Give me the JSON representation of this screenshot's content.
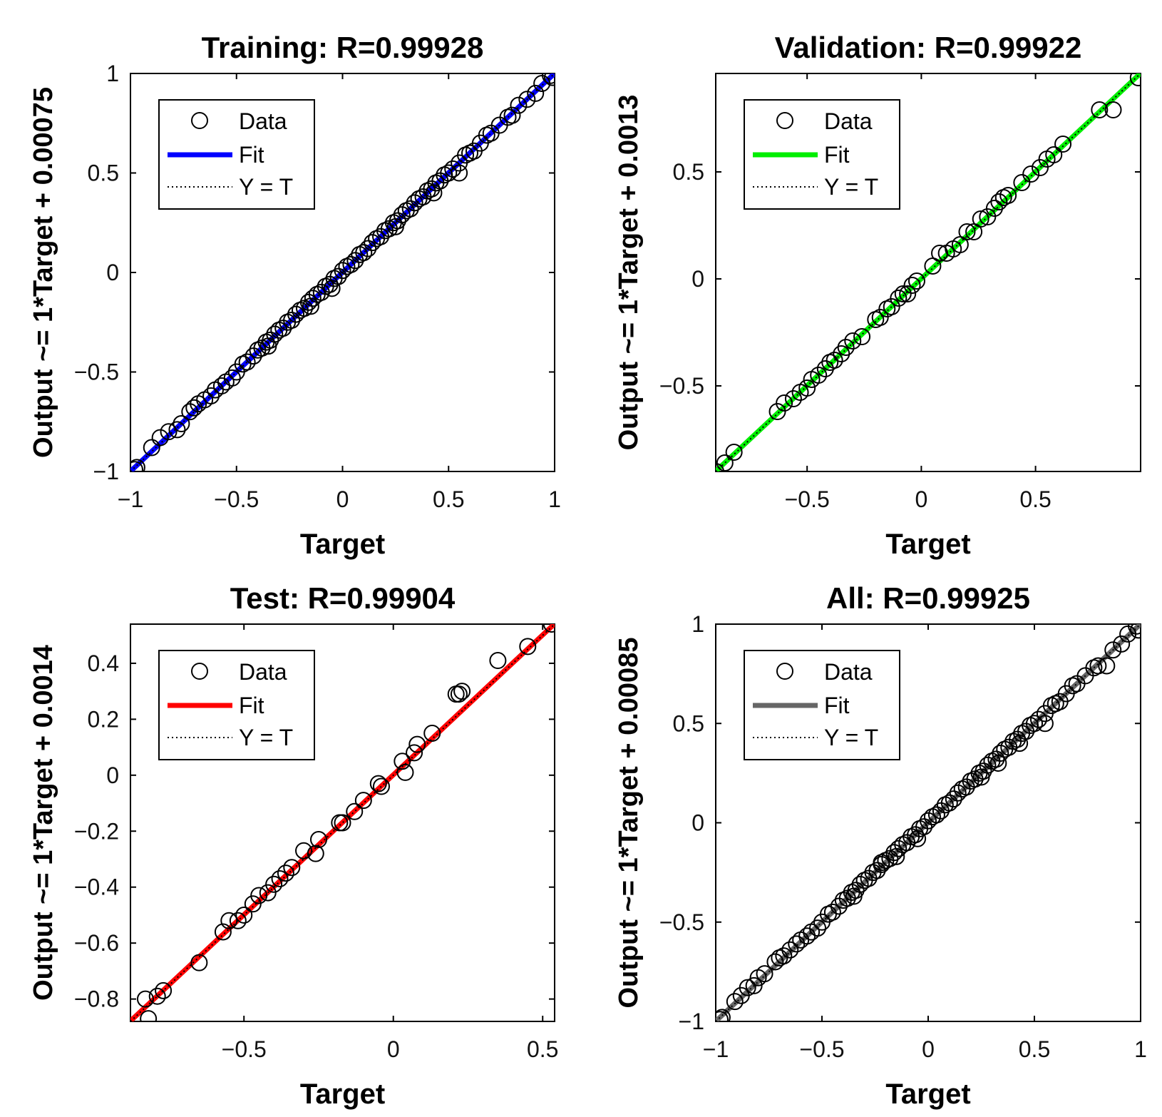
{
  "chart_data": [
    {
      "type": "scatter",
      "title": "Training: R=0.99928",
      "xlabel": "Target",
      "ylabel": "Output ~= 1*Target + 0.00075",
      "xlim": [
        -1,
        1
      ],
      "ylim": [
        -1,
        1
      ],
      "xticks": [
        -1,
        -0.5,
        0,
        0.5,
        1
      ],
      "yticks": [
        -1,
        -0.5,
        0,
        0.5,
        1
      ],
      "xtick_labels": [
        "−1",
        "−0.5",
        "0",
        "0.5",
        "1"
      ],
      "ytick_labels": [
        "−1",
        "−0.5",
        "0",
        "0.5",
        "1"
      ],
      "fit": {
        "slope": 1,
        "intercept": 0.00075,
        "color": "#0000ff"
      },
      "legend": [
        "Data",
        "Fit",
        "Y = T"
      ],
      "points": [
        [
          -0.98,
          -0.99
        ],
        [
          -0.97,
          -0.98
        ],
        [
          -0.9,
          -0.88
        ],
        [
          -0.86,
          -0.83
        ],
        [
          -0.82,
          -0.8
        ],
        [
          -0.78,
          -0.79
        ],
        [
          -0.76,
          -0.76
        ],
        [
          -0.72,
          -0.7
        ],
        [
          -0.7,
          -0.68
        ],
        [
          -0.68,
          -0.66
        ],
        [
          -0.65,
          -0.64
        ],
        [
          -0.62,
          -0.62
        ],
        [
          -0.6,
          -0.59
        ],
        [
          -0.57,
          -0.57
        ],
        [
          -0.55,
          -0.55
        ],
        [
          -0.52,
          -0.53
        ],
        [
          -0.5,
          -0.5
        ],
        [
          -0.47,
          -0.46
        ],
        [
          -0.45,
          -0.45
        ],
        [
          -0.42,
          -0.42
        ],
        [
          -0.4,
          -0.39
        ],
        [
          -0.38,
          -0.38
        ],
        [
          -0.36,
          -0.35
        ],
        [
          -0.34,
          -0.34
        ],
        [
          -0.32,
          -0.31
        ],
        [
          -0.3,
          -0.29
        ],
        [
          -0.28,
          -0.28
        ],
        [
          -0.26,
          -0.25
        ],
        [
          -0.24,
          -0.24
        ],
        [
          -0.22,
          -0.21
        ],
        [
          -0.2,
          -0.19
        ],
        [
          -0.18,
          -0.18
        ],
        [
          -0.16,
          -0.15
        ],
        [
          -0.14,
          -0.13
        ],
        [
          -0.12,
          -0.11
        ],
        [
          -0.1,
          -0.1
        ],
        [
          -0.08,
          -0.07
        ],
        [
          -0.06,
          -0.06
        ],
        [
          -0.04,
          -0.03
        ],
        [
          -0.02,
          -0.02
        ],
        [
          0.0,
          0.01
        ],
        [
          0.02,
          0.03
        ],
        [
          0.04,
          0.04
        ],
        [
          0.06,
          0.06
        ],
        [
          0.08,
          0.09
        ],
        [
          0.1,
          0.1
        ],
        [
          0.12,
          0.12
        ],
        [
          0.14,
          0.15
        ],
        [
          0.16,
          0.17
        ],
        [
          0.18,
          0.18
        ],
        [
          0.2,
          0.21
        ],
        [
          0.22,
          0.22
        ],
        [
          0.24,
          0.25
        ],
        [
          0.26,
          0.26
        ],
        [
          0.28,
          0.29
        ],
        [
          0.3,
          0.31
        ],
        [
          0.32,
          0.32
        ],
        [
          0.34,
          0.35
        ],
        [
          0.36,
          0.37
        ],
        [
          0.38,
          0.38
        ],
        [
          0.4,
          0.41
        ],
        [
          0.42,
          0.42
        ],
        [
          0.44,
          0.45
        ],
        [
          0.46,
          0.46
        ],
        [
          0.48,
          0.49
        ],
        [
          0.5,
          0.5
        ],
        [
          0.52,
          0.52
        ],
        [
          0.55,
          0.55
        ],
        [
          0.58,
          0.59
        ],
        [
          0.6,
          0.6
        ],
        [
          0.62,
          0.61
        ],
        [
          0.65,
          0.65
        ],
        [
          0.68,
          0.69
        ],
        [
          0.7,
          0.7
        ],
        [
          0.74,
          0.74
        ],
        [
          0.78,
          0.78
        ],
        [
          0.8,
          0.79
        ],
        [
          0.83,
          0.84
        ],
        [
          0.87,
          0.87
        ],
        [
          0.91,
          0.9
        ],
        [
          0.94,
          0.95
        ],
        [
          0.98,
          0.99
        ],
        [
          0.99,
          0.98
        ],
        [
          -0.15,
          -0.17
        ],
        [
          0.25,
          0.23
        ],
        [
          -0.35,
          -0.37
        ],
        [
          0.43,
          0.4
        ],
        [
          -0.05,
          -0.08
        ],
        [
          0.55,
          0.5
        ]
      ]
    },
    {
      "type": "scatter",
      "title": "Validation: R=0.99922",
      "xlabel": "Target",
      "ylabel": "Output ~= 1*Target + 0.0013",
      "xlim": [
        -0.9,
        0.96
      ],
      "ylim": [
        -0.9,
        0.96
      ],
      "xticks": [
        -0.5,
        0,
        0.5
      ],
      "yticks": [
        -0.5,
        0,
        0.5
      ],
      "xtick_labels": [
        "−0.5",
        "0",
        "0.5"
      ],
      "ytick_labels": [
        "−0.5",
        "0",
        "0.5"
      ],
      "fit": {
        "slope": 1,
        "intercept": 0.0013,
        "color": "#00ee00"
      },
      "legend": [
        "Data",
        "Fit",
        "Y = T"
      ],
      "points": [
        [
          -0.9,
          -0.9
        ],
        [
          -0.86,
          -0.86
        ],
        [
          -0.82,
          -0.81
        ],
        [
          -0.63,
          -0.62
        ],
        [
          -0.6,
          -0.58
        ],
        [
          -0.56,
          -0.56
        ],
        [
          -0.53,
          -0.53
        ],
        [
          -0.5,
          -0.51
        ],
        [
          -0.48,
          -0.47
        ],
        [
          -0.45,
          -0.45
        ],
        [
          -0.42,
          -0.42
        ],
        [
          -0.4,
          -0.39
        ],
        [
          -0.38,
          -0.38
        ],
        [
          -0.35,
          -0.35
        ],
        [
          -0.33,
          -0.32
        ],
        [
          -0.3,
          -0.29
        ],
        [
          -0.26,
          -0.27
        ],
        [
          -0.2,
          -0.19
        ],
        [
          -0.18,
          -0.18
        ],
        [
          -0.15,
          -0.14
        ],
        [
          -0.13,
          -0.13
        ],
        [
          -0.1,
          -0.09
        ],
        [
          -0.08,
          -0.07
        ],
        [
          -0.06,
          -0.07
        ],
        [
          -0.04,
          -0.03
        ],
        [
          -0.02,
          -0.01
        ],
        [
          0.05,
          0.06
        ],
        [
          0.08,
          0.12
        ],
        [
          0.11,
          0.12
        ],
        [
          0.14,
          0.14
        ],
        [
          0.17,
          0.16
        ],
        [
          0.2,
          0.22
        ],
        [
          0.23,
          0.22
        ],
        [
          0.26,
          0.28
        ],
        [
          0.29,
          0.29
        ],
        [
          0.32,
          0.33
        ],
        [
          0.34,
          0.36
        ],
        [
          0.36,
          0.38
        ],
        [
          0.38,
          0.39
        ],
        [
          0.44,
          0.45
        ],
        [
          0.48,
          0.49
        ],
        [
          0.52,
          0.52
        ],
        [
          0.55,
          0.56
        ],
        [
          0.58,
          0.58
        ],
        [
          0.62,
          0.63
        ],
        [
          0.78,
          0.79
        ],
        [
          0.84,
          0.79
        ],
        [
          0.95,
          0.94
        ]
      ]
    },
    {
      "type": "scatter",
      "title": "Test: R=0.99904",
      "xlabel": "Target",
      "ylabel": "Output ~= 1*Target + 0.0014",
      "xlim": [
        -0.88,
        0.54
      ],
      "ylim": [
        -0.88,
        0.54
      ],
      "xticks": [
        -0.5,
        0,
        0.5
      ],
      "yticks": [
        -0.8,
        -0.6,
        -0.4,
        -0.2,
        0,
        0.2,
        0.4
      ],
      "xtick_labels": [
        "−0.5",
        "0",
        "0.5"
      ],
      "ytick_labels": [
        "−0.8",
        "−0.6",
        "−0.4",
        "−0.2",
        "0",
        "0.2",
        "0.4"
      ],
      "fit": {
        "slope": 1,
        "intercept": 0.0014,
        "color": "#ff0000"
      },
      "legend": [
        "Data",
        "Fit",
        "Y = T"
      ],
      "points": [
        [
          -0.83,
          -0.8
        ],
        [
          -0.82,
          -0.87
        ],
        [
          -0.79,
          -0.79
        ],
        [
          -0.77,
          -0.77
        ],
        [
          -0.65,
          -0.67
        ],
        [
          -0.57,
          -0.56
        ],
        [
          -0.55,
          -0.52
        ],
        [
          -0.52,
          -0.52
        ],
        [
          -0.5,
          -0.5
        ],
        [
          -0.47,
          -0.46
        ],
        [
          -0.45,
          -0.43
        ],
        [
          -0.42,
          -0.42
        ],
        [
          -0.4,
          -0.39
        ],
        [
          -0.38,
          -0.37
        ],
        [
          -0.36,
          -0.35
        ],
        [
          -0.34,
          -0.33
        ],
        [
          -0.3,
          -0.27
        ],
        [
          -0.26,
          -0.28
        ],
        [
          -0.25,
          -0.23
        ],
        [
          -0.18,
          -0.17
        ],
        [
          -0.17,
          -0.17
        ],
        [
          -0.13,
          -0.13
        ],
        [
          -0.1,
          -0.09
        ],
        [
          -0.05,
          -0.03
        ],
        [
          -0.04,
          -0.04
        ],
        [
          0.03,
          0.05
        ],
        [
          0.04,
          0.01
        ],
        [
          0.07,
          0.08
        ],
        [
          0.08,
          0.11
        ],
        [
          0.13,
          0.15
        ],
        [
          0.21,
          0.29
        ],
        [
          0.22,
          0.29
        ],
        [
          0.23,
          0.3
        ],
        [
          0.35,
          0.41
        ],
        [
          0.45,
          0.46
        ],
        [
          0.53,
          0.54
        ]
      ]
    },
    {
      "type": "scatter",
      "title": "All: R=0.99925",
      "xlabel": "Target",
      "ylabel": "Output ~= 1*Target + 0.00085",
      "xlim": [
        -1,
        1
      ],
      "ylim": [
        -1,
        1
      ],
      "xticks": [
        -1,
        -0.5,
        0,
        0.5,
        1
      ],
      "yticks": [
        -1,
        -0.5,
        0,
        0.5,
        1
      ],
      "xtick_labels": [
        "−1",
        "−0.5",
        "0",
        "0.5",
        "1"
      ],
      "ytick_labels": [
        "−1",
        "−0.5",
        "0",
        "0.5",
        "1"
      ],
      "fit": {
        "slope": 1,
        "intercept": 0.00085,
        "color": "#666666"
      },
      "legend": [
        "Data",
        "Fit",
        "Y = T"
      ],
      "points": [
        [
          -0.98,
          -0.99
        ],
        [
          -0.97,
          -0.98
        ],
        [
          -0.91,
          -0.9
        ],
        [
          -0.88,
          -0.87
        ],
        [
          -0.85,
          -0.83
        ],
        [
          -0.82,
          -0.82
        ],
        [
          -0.8,
          -0.78
        ],
        [
          -0.77,
          -0.76
        ],
        [
          -0.72,
          -0.7
        ],
        [
          -0.7,
          -0.68
        ],
        [
          -0.68,
          -0.67
        ],
        [
          -0.65,
          -0.64
        ],
        [
          -0.62,
          -0.61
        ],
        [
          -0.6,
          -0.59
        ],
        [
          -0.57,
          -0.57
        ],
        [
          -0.55,
          -0.55
        ],
        [
          -0.52,
          -0.53
        ],
        [
          -0.5,
          -0.5
        ],
        [
          -0.47,
          -0.46
        ],
        [
          -0.45,
          -0.45
        ],
        [
          -0.42,
          -0.42
        ],
        [
          -0.4,
          -0.39
        ],
        [
          -0.38,
          -0.38
        ],
        [
          -0.36,
          -0.35
        ],
        [
          -0.34,
          -0.34
        ],
        [
          -0.32,
          -0.31
        ],
        [
          -0.3,
          -0.29
        ],
        [
          -0.28,
          -0.28
        ],
        [
          -0.26,
          -0.25
        ],
        [
          -0.24,
          -0.24
        ],
        [
          -0.22,
          -0.21
        ],
        [
          -0.2,
          -0.19
        ],
        [
          -0.18,
          -0.18
        ],
        [
          -0.16,
          -0.15
        ],
        [
          -0.14,
          -0.13
        ],
        [
          -0.12,
          -0.11
        ],
        [
          -0.1,
          -0.1
        ],
        [
          -0.08,
          -0.07
        ],
        [
          -0.06,
          -0.06
        ],
        [
          -0.04,
          -0.03
        ],
        [
          -0.02,
          -0.02
        ],
        [
          0.0,
          0.01
        ],
        [
          0.02,
          0.03
        ],
        [
          0.04,
          0.04
        ],
        [
          0.06,
          0.06
        ],
        [
          0.08,
          0.09
        ],
        [
          0.1,
          0.1
        ],
        [
          0.12,
          0.12
        ],
        [
          0.14,
          0.15
        ],
        [
          0.16,
          0.17
        ],
        [
          0.18,
          0.18
        ],
        [
          0.2,
          0.21
        ],
        [
          0.22,
          0.22
        ],
        [
          0.24,
          0.25
        ],
        [
          0.26,
          0.26
        ],
        [
          0.28,
          0.29
        ],
        [
          0.3,
          0.31
        ],
        [
          0.32,
          0.32
        ],
        [
          0.34,
          0.35
        ],
        [
          0.36,
          0.37
        ],
        [
          0.38,
          0.38
        ],
        [
          0.4,
          0.41
        ],
        [
          0.42,
          0.42
        ],
        [
          0.44,
          0.45
        ],
        [
          0.46,
          0.46
        ],
        [
          0.48,
          0.49
        ],
        [
          0.5,
          0.5
        ],
        [
          0.52,
          0.52
        ],
        [
          0.55,
          0.55
        ],
        [
          0.58,
          0.59
        ],
        [
          0.6,
          0.6
        ],
        [
          0.62,
          0.61
        ],
        [
          0.65,
          0.65
        ],
        [
          0.68,
          0.69
        ],
        [
          0.7,
          0.7
        ],
        [
          0.74,
          0.74
        ],
        [
          0.78,
          0.78
        ],
        [
          0.8,
          0.79
        ],
        [
          0.84,
          0.79
        ],
        [
          0.87,
          0.87
        ],
        [
          0.91,
          0.9
        ],
        [
          0.94,
          0.95
        ],
        [
          0.98,
          0.99
        ],
        [
          0.99,
          0.97
        ],
        [
          -0.15,
          -0.17
        ],
        [
          0.25,
          0.23
        ],
        [
          -0.35,
          -0.37
        ],
        [
          0.43,
          0.4
        ],
        [
          -0.05,
          -0.08
        ],
        [
          0.55,
          0.5
        ],
        [
          -0.22,
          -0.2
        ],
        [
          0.33,
          0.3
        ]
      ]
    }
  ]
}
